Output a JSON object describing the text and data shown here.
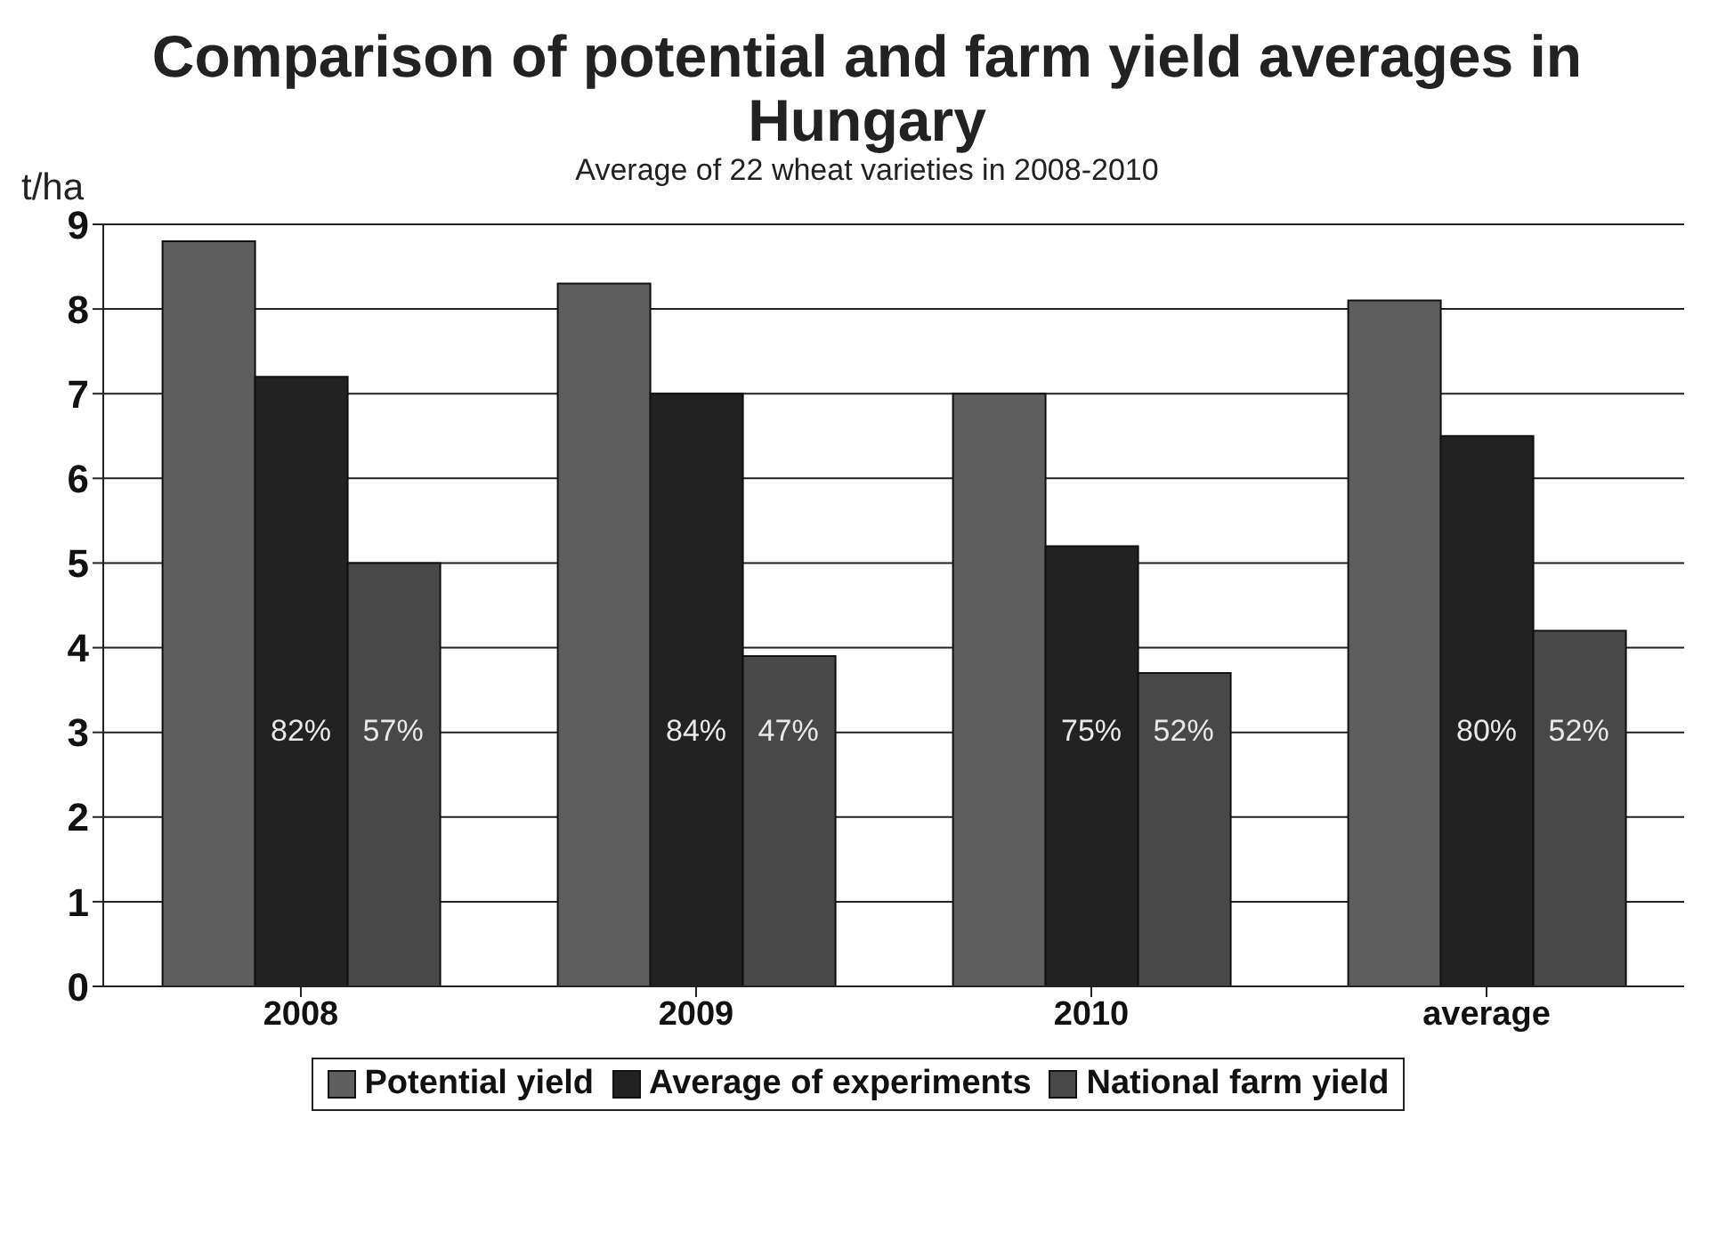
{
  "chart_data": {
    "type": "bar",
    "title": "Comparison of potential and farm yield averages in Hungary",
    "subtitle": "Average of 22 wheat varieties in 2008-2010",
    "ylabel": "t/ha",
    "categories": [
      "2008",
      "2009",
      "2010",
      "average"
    ],
    "series": [
      {
        "name": "Potential yield",
        "color": "#5e5e5e",
        "values": [
          8.8,
          8.3,
          7.0,
          8.1
        ]
      },
      {
        "name": "Average of experiments",
        "color": "#222222",
        "values": [
          7.2,
          7.0,
          5.2,
          6.5
        ]
      },
      {
        "name": "National farm yield",
        "color": "#484848",
        "values": [
          5.0,
          3.9,
          3.7,
          4.2
        ]
      }
    ],
    "annotations": [
      "82%",
      "57%",
      "84%",
      "47%",
      "75%",
      "52%",
      "80%",
      "52%"
    ],
    "ylim": [
      0,
      9
    ],
    "yticks": [
      0,
      1,
      2,
      3,
      4,
      5,
      6,
      7,
      8,
      9
    ],
    "grid": "y",
    "legend": "bottom"
  }
}
